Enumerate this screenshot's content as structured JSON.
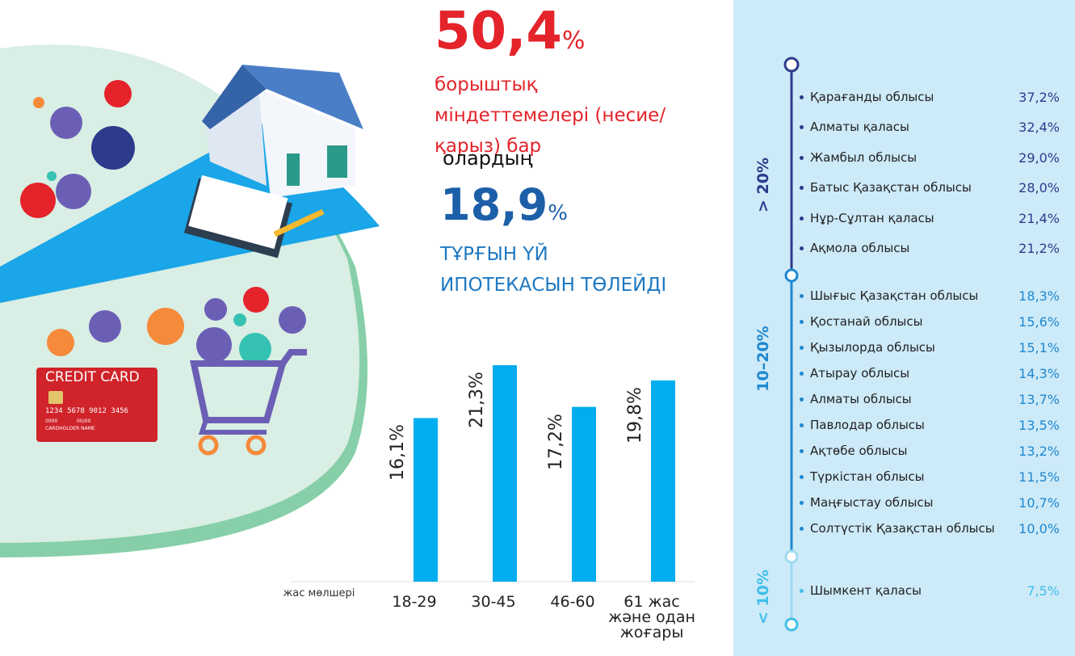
{
  "headline": {
    "value": "50,4",
    "unit": "%",
    "text": "борыштық міндеттемелері (несие/ қарыз) бар"
  },
  "subheadline": {
    "intro": "олардың",
    "value": "18,9",
    "unit": "%",
    "text": "ТҰРҒЫН ҮЙ ИПОТЕКАСЫН ТӨЛЕЙДІ"
  },
  "credit_card": {
    "title": "CREDIT CARD",
    "number": "1234 5678 9012 3456",
    "code": "0000",
    "expiry": "00/00",
    "holder": "CARDHOLDER NAME"
  },
  "chart_data": {
    "type": "bar",
    "x_label": "жас мөлшері",
    "categories": [
      "18-29",
      "30-45",
      "46-60",
      "61 жас және одан жоғары"
    ],
    "values": [
      16.1,
      21.3,
      17.2,
      19.8
    ],
    "value_labels": [
      "16,1%",
      "21,3%",
      "17,2%",
      "19,8%"
    ],
    "color": "#00adef"
  },
  "regions": [
    {
      "label": "> 20%",
      "color": "#2e3a8c",
      "items": [
        {
          "name": "Қарағанды облысы",
          "value": "37,2%"
        },
        {
          "name": "Алматы қаласы",
          "value": "32,4%"
        },
        {
          "name": "Жамбыл облысы",
          "value": "29,0%"
        },
        {
          "name": "Батыс Қазақстан облысы",
          "value": "28,0%"
        },
        {
          "name": "Нұр-Сұлтан қаласы",
          "value": "21,4%"
        },
        {
          "name": "Ақмола облысы",
          "value": "21,2%"
        }
      ]
    },
    {
      "label": "10–20%",
      "color": "#1e88d0",
      "items": [
        {
          "name": "Шығыс Қазақстан облысы",
          "value": "18,3%"
        },
        {
          "name": "Қостанай облысы",
          "value": "15,6%"
        },
        {
          "name": "Қызылорда облысы",
          "value": "15,1%"
        },
        {
          "name": "Атырау облысы",
          "value": "14,3%"
        },
        {
          "name": "Алматы облысы",
          "value": "13,7%"
        },
        {
          "name": "Павлодар облысы",
          "value": "13,5%"
        },
        {
          "name": "Ақтөбе облысы",
          "value": "13,2%"
        },
        {
          "name": "Түркістан облысы",
          "value": "11,5%"
        },
        {
          "name": "Маңғыстау облысы",
          "value": "10,7%"
        },
        {
          "name": "Солтүстік Қазақстан облысы",
          "value": "10,0%"
        }
      ]
    },
    {
      "label": "< 10%",
      "color": "#3fbfe9",
      "items": [
        {
          "name": "Шымкент қаласы",
          "value": "7,5%"
        }
      ]
    }
  ]
}
